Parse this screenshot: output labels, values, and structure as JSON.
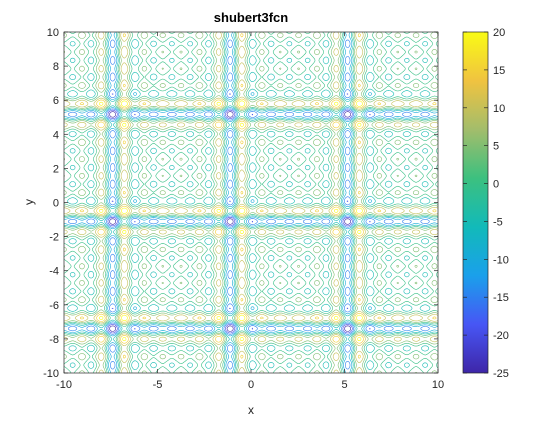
{
  "chart_data": {
    "type": "contour",
    "title": "shubert3fcn",
    "xlabel": "x",
    "ylabel": "y",
    "xlim": [
      -10,
      10
    ],
    "ylim": [
      -10,
      10
    ],
    "xticks": [
      -10,
      -5,
      0,
      5,
      10
    ],
    "yticks": [
      -10,
      -8,
      -6,
      -4,
      -2,
      0,
      2,
      4,
      6,
      8,
      10
    ],
    "colorbar": {
      "ticks": [
        20,
        15,
        10,
        5,
        0,
        -5,
        -10,
        -15,
        -20,
        -25
      ],
      "range": [
        -25,
        20
      ],
      "colormap": "parula",
      "colors": [
        "#3e26a8",
        "#4756f5",
        "#1aa0eb",
        "#12bab9",
        "#3cc07f",
        "#a3bd6b",
        "#f0c340",
        "#f9fb15"
      ]
    },
    "function": "shubert3(x,y) = sum_{j=1..5} j*[sin((j+1)x + j) + sin((j+1)y + j)]",
    "contour_levels": [
      -25,
      -20,
      -15,
      -10,
      -5,
      0,
      5,
      10,
      15,
      20
    ],
    "grid": false
  }
}
